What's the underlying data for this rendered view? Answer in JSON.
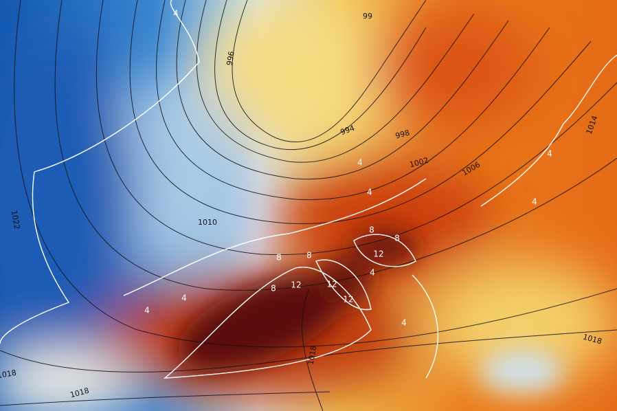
{
  "isobar_labels": [
    "99",
    "996",
    "994",
    "998",
    "1002",
    "1006",
    "1010",
    "1014",
    "1022",
    "1018",
    "1018",
    "1018",
    "1018"
  ],
  "temperature_labels": [
    "4",
    "4",
    "4",
    "4",
    "4",
    "4",
    "4",
    "4",
    "4",
    "8",
    "8",
    "8",
    "8",
    "8",
    "12",
    "12",
    "12",
    "12"
  ]
}
